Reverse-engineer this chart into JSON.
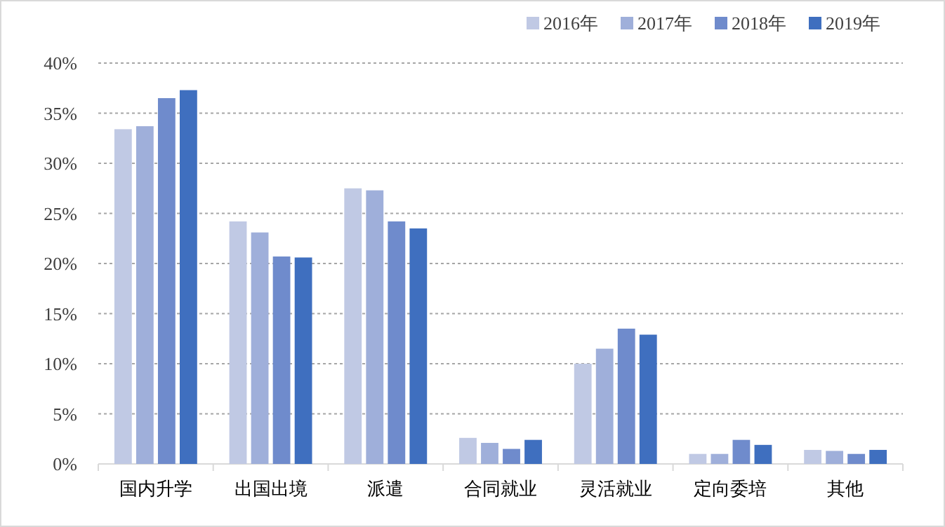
{
  "chart_data": {
    "type": "bar",
    "categories": [
      "国内升学",
      "出国出境",
      "派遣",
      "合同就业",
      "灵活就业",
      "定向委培",
      "其他"
    ],
    "series": [
      {
        "name": "2016年",
        "color": "#c0c9e4",
        "values": [
          33.4,
          24.2,
          27.5,
          2.6,
          10.0,
          1.0,
          1.4
        ]
      },
      {
        "name": "2017年",
        "color": "#9fafda",
        "values": [
          33.7,
          23.1,
          27.3,
          2.1,
          11.5,
          1.0,
          1.3
        ]
      },
      {
        "name": "2018年",
        "color": "#6f8bcc",
        "values": [
          36.5,
          20.7,
          24.2,
          1.5,
          13.5,
          2.4,
          1.0
        ]
      },
      {
        "name": "2019年",
        "color": "#3f6fbf",
        "values": [
          37.3,
          20.6,
          23.5,
          2.4,
          12.9,
          1.9,
          1.4
        ]
      }
    ],
    "ylim": [
      0,
      40
    ],
    "yticks": [
      {
        "value": 0,
        "label": "0%"
      },
      {
        "value": 5,
        "label": "5%"
      },
      {
        "value": 10,
        "label": "10%"
      },
      {
        "value": 15,
        "label": "15%"
      },
      {
        "value": 20,
        "label": "20%"
      },
      {
        "value": 25,
        "label": "25%"
      },
      {
        "value": 30,
        "label": "30%"
      },
      {
        "value": 35,
        "label": "35%"
      },
      {
        "value": 40,
        "label": "40%"
      }
    ],
    "grid": "y",
    "legend": "top right"
  }
}
